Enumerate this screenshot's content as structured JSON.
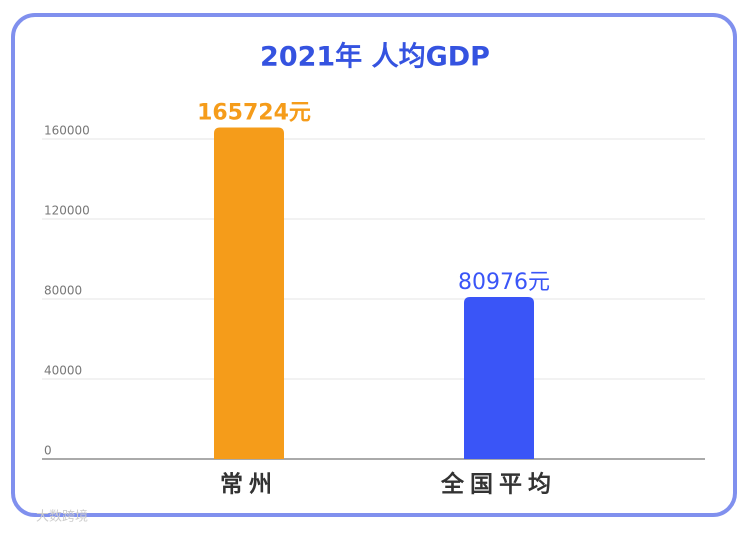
{
  "chart_data": {
    "type": "bar",
    "title": "2021年 人均GDP",
    "categories": [
      "常州",
      "全国平均"
    ],
    "values": [
      165724,
      80976
    ],
    "value_labels": [
      "165724元",
      "80976元"
    ],
    "colors": [
      "#f59c1a",
      "#3a55f7"
    ],
    "ylim": [
      0,
      160000
    ],
    "yticks": [
      0,
      40000,
      80000,
      120000,
      160000
    ],
    "grid": true,
    "watermark": "大数跨境"
  }
}
